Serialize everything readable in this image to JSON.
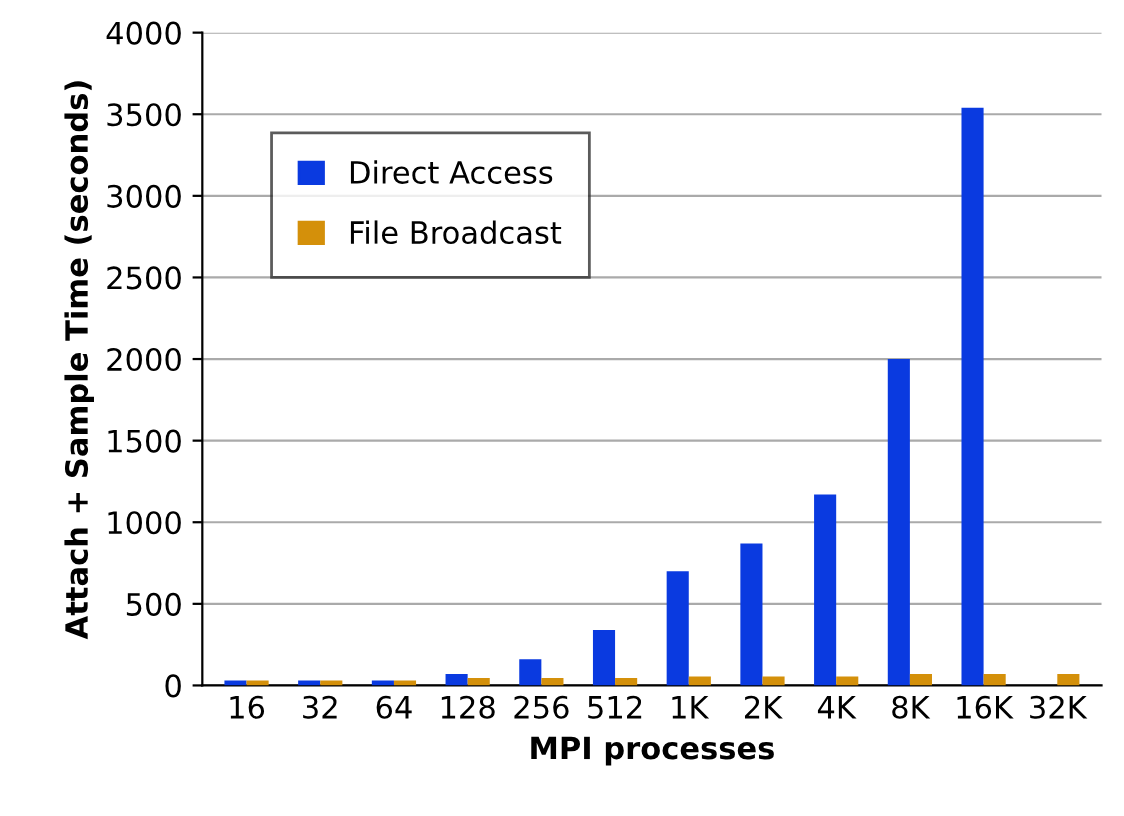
{
  "chart_data": {
    "type": "bar",
    "xlabel": "MPI processes",
    "ylabel": "Attach + Sample Time (seconds)",
    "categories": [
      "16",
      "32",
      "64",
      "128",
      "256",
      "512",
      "1K",
      "2K",
      "4K",
      "8K",
      "16K",
      "32K"
    ],
    "series": [
      {
        "name": "Direct Access",
        "color": "#0a3ae0",
        "values": [
          30,
          30,
          30,
          70,
          160,
          340,
          700,
          870,
          1170,
          2000,
          3540,
          null
        ]
      },
      {
        "name": "File Broadcast",
        "color": "#d4900a",
        "values": [
          30,
          30,
          30,
          45,
          45,
          45,
          55,
          55,
          55,
          70,
          70,
          70
        ]
      }
    ],
    "ylim": [
      0,
      4000
    ],
    "yticks": [
      0,
      500,
      1000,
      1500,
      2000,
      2500,
      3000,
      3500,
      4000
    ],
    "grid": "y",
    "legend": "top left"
  }
}
